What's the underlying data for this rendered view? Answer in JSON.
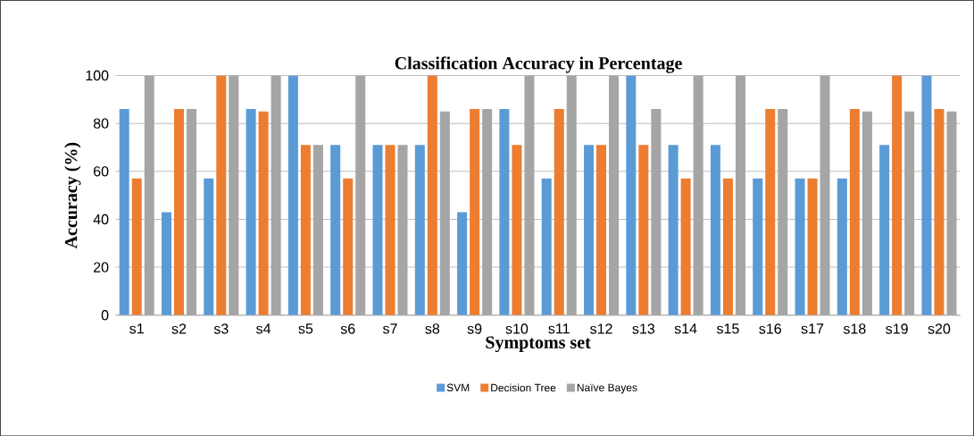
{
  "chart_data": {
    "type": "bar",
    "title": "Classification Accuracy in Percentage",
    "xlabel": "Symptoms set",
    "ylabel": "Accuracy (%)",
    "categories": [
      "s1",
      "s2",
      "s3",
      "s4",
      "s5",
      "s6",
      "s7",
      "s8",
      "s9",
      "s10",
      "s11",
      "s12",
      "s13",
      "s14",
      "s15",
      "s16",
      "s17",
      "s18",
      "s19",
      "s20"
    ],
    "series": [
      {
        "name": "SVM",
        "color": "#5b9bd5",
        "values": [
          86,
          43,
          57,
          86,
          100,
          71,
          71,
          71,
          43,
          86,
          57,
          71,
          100,
          71,
          71,
          57,
          57,
          57,
          71,
          100
        ]
      },
      {
        "name": "Decision Tree",
        "color": "#ed7d31",
        "values": [
          57,
          86,
          100,
          85,
          71,
          57,
          71,
          100,
          86,
          71,
          86,
          71,
          71,
          57,
          57,
          86,
          57,
          86,
          100,
          86
        ]
      },
      {
        "name": "Naïve Bayes",
        "color": "#a5a5a5",
        "values": [
          100,
          86,
          100,
          100,
          71,
          100,
          71,
          85,
          86,
          100,
          100,
          100,
          86,
          100,
          100,
          86,
          100,
          85,
          85,
          85
        ]
      }
    ],
    "ylim": [
      0,
      100
    ],
    "yticks": [
      0,
      20,
      40,
      60,
      80,
      100
    ],
    "grid": "y",
    "legend": "bottom"
  }
}
